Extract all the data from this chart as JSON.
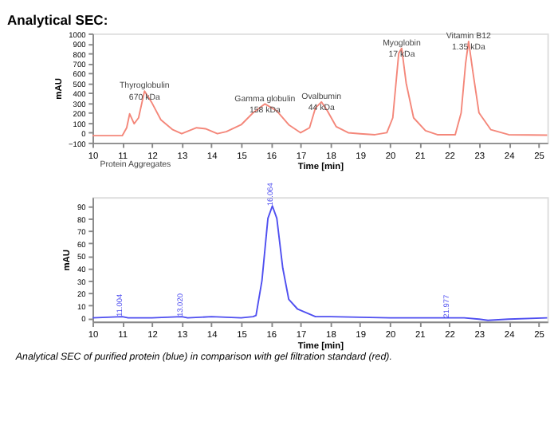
{
  "chart_data": [
    {
      "type": "line",
      "title": "Analytical SEC:",
      "xlabel": "Time [min]",
      "ylabel": "mAU",
      "xlim": [
        10,
        25.3
      ],
      "ylim": [
        -100,
        1000
      ],
      "xticks": [
        10,
        11,
        12,
        13,
        14,
        15,
        16,
        17,
        18,
        19,
        20,
        21,
        22,
        23,
        24,
        25
      ],
      "yticks": [
        -100,
        0,
        100,
        200,
        300,
        400,
        500,
        600,
        700,
        800,
        900,
        1000
      ],
      "grid": false,
      "series": [
        {
          "color": "#f4877a",
          "x": [
            10,
            10.5,
            11,
            11.15,
            11.25,
            11.4,
            11.55,
            11.75,
            12,
            12.3,
            12.7,
            13,
            13.5,
            13.8,
            14.2,
            14.5,
            15,
            15.4,
            15.8,
            16.2,
            16.6,
            17,
            17.3,
            17.5,
            17.7,
            17.9,
            18.2,
            18.6,
            19,
            19.5,
            19.9,
            20.1,
            20.3,
            20.4,
            20.55,
            20.8,
            21.2,
            21.6,
            22.2,
            22.4,
            22.55,
            22.65,
            22.8,
            23,
            23.4,
            24,
            25.3
          ],
          "values": [
            -30,
            -30,
            -30,
            50,
            190,
            90,
            150,
            420,
            300,
            130,
            30,
            -10,
            50,
            40,
            -10,
            10,
            80,
            200,
            290,
            220,
            80,
            0,
            50,
            250,
            310,
            220,
            60,
            0,
            -10,
            -20,
            0,
            150,
            800,
            850,
            500,
            150,
            20,
            -20,
            -20,
            200,
            700,
            920,
            600,
            200,
            30,
            -20,
            -25
          ]
        }
      ],
      "annotations": [
        {
          "text": "Thyroglobulin\n670 kDa",
          "x": 11.75,
          "y": 420
        },
        {
          "text": "Gamma globulin\n158 kDa",
          "x": 15.8,
          "y": 290
        },
        {
          "text": "Ovalbumin\n44 kDa",
          "x": 17.7,
          "y": 310
        },
        {
          "text": "Myoglobin\n17 kDa",
          "x": 20.4,
          "y": 850
        },
        {
          "text": "Vitamin B12\n1.35 kDa",
          "x": 22.65,
          "y": 920
        },
        "Protein Aggregates"
      ]
    },
    {
      "type": "line",
      "xlabel": "Time [min]",
      "ylabel": "mAU",
      "xlim": [
        10,
        25.3
      ],
      "ylim": [
        -3,
        97
      ],
      "xticks": [
        10,
        11,
        12,
        13,
        14,
        15,
        16,
        17,
        18,
        19,
        20,
        21,
        22,
        23,
        24,
        25
      ],
      "yticks": [
        0,
        10,
        20,
        30,
        40,
        50,
        60,
        70,
        80,
        90
      ],
      "grid": false,
      "series": [
        {
          "color": "#4f4ff0",
          "x": [
            10,
            11,
            11.2,
            12,
            13,
            13.2,
            14,
            15,
            15.4,
            15.5,
            15.7,
            15.9,
            16.05,
            16.2,
            16.4,
            16.6,
            16.9,
            17.2,
            17.5,
            18,
            20,
            22.5,
            23,
            23.3,
            24,
            25.3
          ],
          "values": [
            0,
            1,
            0,
            0,
            1,
            0,
            1,
            0,
            1,
            2,
            30,
            80,
            90,
            80,
            40,
            15,
            7,
            4,
            1,
            1,
            0,
            0,
            -1,
            -2,
            -1,
            0
          ]
        }
      ],
      "annotations": [
        {
          "text": "11.004",
          "x": 11.004,
          "y": 1
        },
        {
          "text": "13.020",
          "x": 13.02,
          "y": 1
        },
        {
          "text": "16.064",
          "x": 16.064,
          "y": 90
        },
        {
          "text": "21.977",
          "x": 21.977,
          "y": 0
        },
        "Analytical SEC of purified protein (blue) in comparison with gel filtration standard (red)."
      ]
    }
  ]
}
